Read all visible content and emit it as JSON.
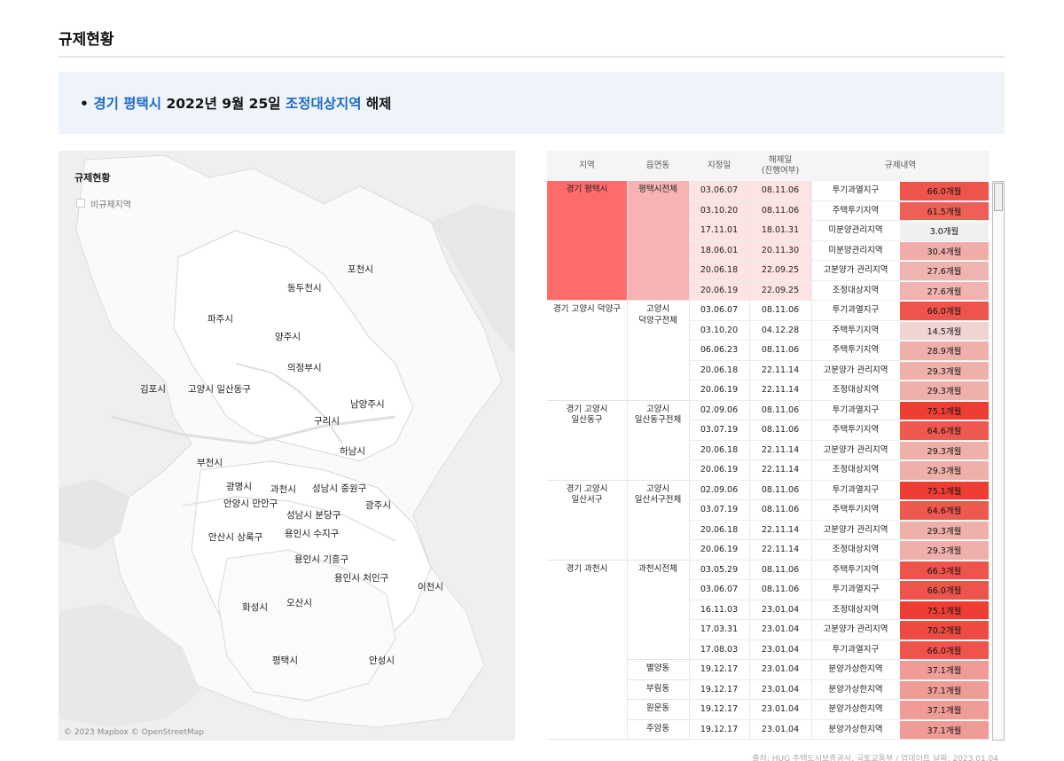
{
  "page": {
    "title": "규제현황"
  },
  "notice": {
    "bullet": "•",
    "region": "경기 평택시",
    "date": "2022년 9월 25일",
    "zone": "조정대상지역",
    "action": "해제"
  },
  "map": {
    "legend_title": "규제현황",
    "legend_item": "비규제지역",
    "attribution": "© 2023 Mapbox © OpenStreetMap",
    "labels": [
      "포천시",
      "동두천시",
      "파주시",
      "양주시",
      "의정부시",
      "김포시",
      "고양시 일산동구",
      "남양주시",
      "구리시",
      "하남시",
      "부천시",
      "광명시",
      "과천시",
      "성남시 중원구",
      "안양시 만안구",
      "광주시",
      "성남시 분당구",
      "안산시 상록구",
      "용인시 수지구",
      "용인시 기흥구",
      "용인시 처인구",
      "이천시",
      "화성시",
      "오산시",
      "평택시",
      "안성시"
    ]
  },
  "table": {
    "headers": {
      "region": "지역",
      "dong": "읍면동",
      "designated": "지정일",
      "released_1": "해제일",
      "released_2": "(진행여부)",
      "details": "규제내역"
    },
    "groups": [
      {
        "region": "경기 평택시",
        "dong": "평택시전체",
        "highlight": true,
        "rows": [
          [
            "03.06.07",
            "08.11.06",
            "투기과열지구",
            "66.0개월"
          ],
          [
            "03.10.20",
            "08.11.06",
            "주택투기지역",
            "61.5개월"
          ],
          [
            "17.11.01",
            "18.01.31",
            "미분양관리지역",
            "3.0개월"
          ],
          [
            "18.06.01",
            "20.11.30",
            "미분양관리지역",
            "30.4개월"
          ],
          [
            "20.06.18",
            "22.09.25",
            "고분양가 관리지역",
            "27.6개월"
          ],
          [
            "20.06.19",
            "22.09.25",
            "조정대상지역",
            "27.6개월"
          ]
        ]
      },
      {
        "region": "경기 고양시 덕양구",
        "dong": "고양시 덕양구전체",
        "highlight": false,
        "rows": [
          [
            "03.06.07",
            "08.11.06",
            "투기과열지구",
            "66.0개월"
          ],
          [
            "03.10.20",
            "04.12.28",
            "주택투기지역",
            "14.5개월"
          ],
          [
            "06.06.23",
            "08.11.06",
            "주택투기지역",
            "28.9개월"
          ],
          [
            "20.06.18",
            "22.11.14",
            "고분양가 관리지역",
            "29.3개월"
          ],
          [
            "20.06.19",
            "22.11.14",
            "조정대상지역",
            "29.3개월"
          ]
        ]
      },
      {
        "region": "경기 고양시 일산동구",
        "dong": "고양시 일산동구전체",
        "highlight": false,
        "rows": [
          [
            "02.09.06",
            "08.11.06",
            "투기과열지구",
            "75.1개월"
          ],
          [
            "03.07.19",
            "08.11.06",
            "주택투기지역",
            "64.6개월"
          ],
          [
            "20.06.18",
            "22.11.14",
            "고분양가 관리지역",
            "29.3개월"
          ],
          [
            "20.06.19",
            "22.11.14",
            "조정대상지역",
            "29.3개월"
          ]
        ]
      },
      {
        "region": "경기 고양시 일산서구",
        "dong": "고양시 일산서구전체",
        "highlight": false,
        "rows": [
          [
            "02.09.06",
            "08.11.06",
            "투기과열지구",
            "75.1개월"
          ],
          [
            "03.07.19",
            "08.11.06",
            "주택투기지역",
            "64.6개월"
          ],
          [
            "20.06.18",
            "22.11.14",
            "고분양가 관리지역",
            "29.3개월"
          ],
          [
            "20.06.19",
            "22.11.14",
            "조정대상지역",
            "29.3개월"
          ]
        ]
      },
      {
        "region": "경기 과천시",
        "dong": "과천시전체",
        "highlight": false,
        "rows": [
          [
            "03.05.29",
            "08.11.06",
            "주택투기지역",
            "66.3개월"
          ],
          [
            "03.06.07",
            "08.11.06",
            "투기과열지구",
            "66.0개월"
          ],
          [
            "16.11.03",
            "23.01.04",
            "조정대상지역",
            "75.1개월"
          ],
          [
            "17.03.31",
            "23.01.04",
            "고분양가 관리지역",
            "70.2개월"
          ],
          [
            "17.08.03",
            "23.01.04",
            "투기과열지구",
            "66.0개월"
          ]
        ]
      },
      {
        "region": "",
        "dong": "별양동",
        "highlight": false,
        "rows": [
          [
            "19.12.17",
            "23.01.04",
            "분양가상한지역",
            "37.1개월"
          ]
        ]
      },
      {
        "region": "",
        "dong": "부림동",
        "highlight": false,
        "rows": [
          [
            "19.12.17",
            "23.01.04",
            "분양가상한지역",
            "37.1개월"
          ]
        ]
      },
      {
        "region": "",
        "dong": "원문동",
        "highlight": false,
        "rows": [
          [
            "19.12.17",
            "23.01.04",
            "분양가상한지역",
            "37.1개월"
          ]
        ]
      },
      {
        "region": "",
        "dong": "주암동",
        "highlight": false,
        "rows": [
          [
            "19.12.17",
            "23.01.04",
            "분양가상한지역",
            "37.1개월"
          ]
        ]
      }
    ]
  },
  "colors": {
    "accent_blue": "#1b6ac9",
    "highlight_red": "#ff6b6b",
    "highlight_pink": "#f7b3b3",
    "highlight_light": "#fde3e3"
  },
  "footer": {
    "source": "출처: HUG 주택도시보증공사, 국토교통부 / 업데이트 날짜: 2023.01.04"
  }
}
